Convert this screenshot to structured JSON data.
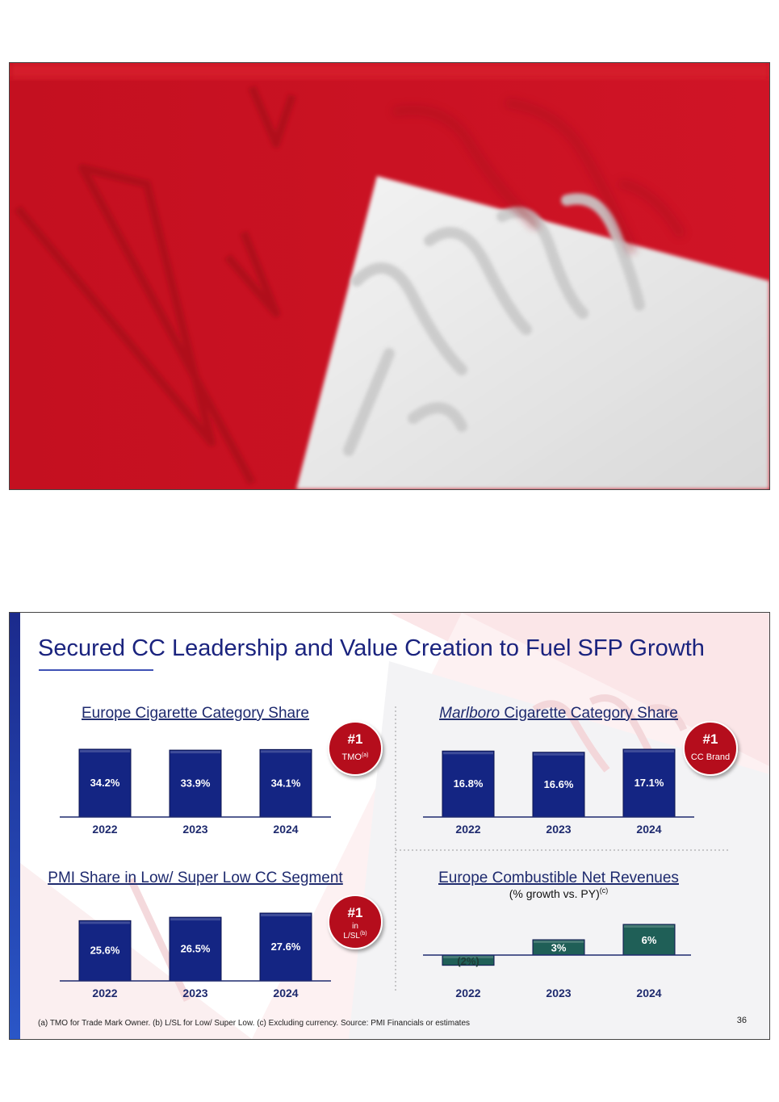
{
  "slide": {
    "title": "Secured CC Leadership and Value Creation to Fuel SFP Growth",
    "footnote": "(a) TMO for Trade Mark Owner. (b) L/SL for Low/ Super Low. (c) Excluding currency. Source: PMI Financials or estimates",
    "page_number": "36"
  },
  "colors": {
    "brand_red": "#c8101f",
    "title_blue": "#1a237e",
    "bar_navy": "#142583",
    "bar_green": "#1f5f57",
    "badge_red": "#b50d1a"
  },
  "chart_data": [
    {
      "type": "bar",
      "title": "Europe Cigarette Category Share",
      "categories": [
        "2022",
        "2023",
        "2024"
      ],
      "values": [
        34.2,
        33.9,
        34.1
      ],
      "labels": [
        "34.2%",
        "33.9%",
        "34.1%"
      ],
      "badge": {
        "rank": "#1",
        "line1": "TMO",
        "sup1": "(a)",
        "line2": "",
        "sup2": ""
      }
    },
    {
      "type": "bar",
      "title_italic": "Marlboro",
      "title": " Cigarette Category Share",
      "categories": [
        "2022",
        "2023",
        "2024"
      ],
      "values": [
        16.8,
        16.6,
        17.1
      ],
      "labels": [
        "16.8%",
        "16.6%",
        "17.1%"
      ],
      "badge": {
        "rank": "#1",
        "line1": "CC Brand",
        "sup1": "",
        "line2": "",
        "sup2": ""
      }
    },
    {
      "type": "bar",
      "title": "PMI Share in Low/ Super Low CC Segment",
      "categories": [
        "2022",
        "2023",
        "2024"
      ],
      "values": [
        25.6,
        26.5,
        27.6
      ],
      "labels": [
        "25.6%",
        "26.5%",
        "27.6%"
      ],
      "badge": {
        "rank": "#1",
        "line1": "in",
        "sup1": "",
        "line2": "L/SL",
        "sup2": "(b)"
      }
    },
    {
      "type": "bar",
      "title": "Europe Combustible Net Revenues",
      "subtitle": "(% growth vs. PY)",
      "subtitle_sup": "(c)",
      "categories": [
        "2022",
        "2023",
        "2024"
      ],
      "values": [
        -2,
        3,
        6
      ],
      "labels": [
        "(2%)",
        "3%",
        "6%"
      ]
    }
  ]
}
